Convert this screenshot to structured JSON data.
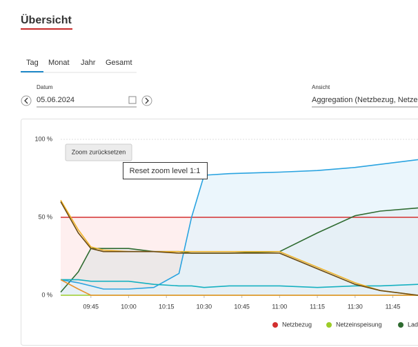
{
  "header": {
    "title": "Übersicht"
  },
  "tabs": [
    "Tag",
    "Monat",
    "Jahr",
    "Gesamt"
  ],
  "date": {
    "label": "Datum",
    "value": "05.06.2024"
  },
  "view": {
    "label": "Ansicht",
    "value": "Aggregation (Netzbezug, Netzei"
  },
  "zoom_button": "Zoom zurücksetzen",
  "tooltip": "Reset zoom level 1:1",
  "chart_data": {
    "type": "line",
    "x": [
      573,
      580,
      585,
      590,
      600,
      610,
      620,
      625,
      630,
      640,
      660,
      675,
      690,
      700,
      715
    ],
    "xlim": [
      573,
      715
    ],
    "xticks": [
      {
        "value": 585,
        "label": "09:45"
      },
      {
        "value": 600,
        "label": "10:00"
      },
      {
        "value": 615,
        "label": "10:15"
      },
      {
        "value": 630,
        "label": "10:30"
      },
      {
        "value": 645,
        "label": "10:45"
      },
      {
        "value": 660,
        "label": "11:00"
      },
      {
        "value": 675,
        "label": "11:15"
      },
      {
        "value": 690,
        "label": "11:30"
      },
      {
        "value": 705,
        "label": "11:45"
      }
    ],
    "ylim": [
      0,
      100
    ],
    "yticks": [
      {
        "value": 0,
        "label": "0 %"
      },
      {
        "value": 50,
        "label": "50 %"
      },
      {
        "value": 100,
        "label": "100 %"
      }
    ],
    "grid": true,
    "series": [
      {
        "name": "Netzbezug",
        "color": "#d32f2f",
        "fill": "#fdeaea",
        "values": [
          50,
          50,
          50,
          50,
          50,
          50,
          50,
          50,
          50,
          50,
          50,
          50,
          50,
          50,
          50
        ]
      },
      {
        "name": "Netzeinspeisung",
        "color": "#9ccc28",
        "values": [
          0,
          0,
          0,
          0,
          0,
          0,
          0,
          0,
          0,
          0,
          0,
          0,
          0,
          0,
          0
        ]
      },
      {
        "name": "Lad",
        "color": "#2e6b30",
        "fill": "#e6e6e6",
        "values": [
          2,
          15,
          30,
          30,
          30,
          28,
          28,
          27,
          27,
          27,
          28,
          40,
          51,
          54,
          56
        ]
      },
      {
        "color": "#29a3e0",
        "fill": "#e4f3fb",
        "values": [
          10,
          8,
          6,
          4,
          4,
          5,
          14,
          50,
          77,
          78,
          79,
          80,
          82,
          84,
          87
        ]
      },
      {
        "color": "#14b0c0",
        "values": [
          10,
          10,
          9,
          9,
          9,
          7,
          6,
          6,
          5,
          6,
          6,
          5,
          6,
          6,
          7
        ]
      },
      {
        "color": "#e8902a",
        "values": [
          10,
          4,
          0,
          0,
          0,
          0,
          0,
          0,
          0,
          0,
          0,
          0,
          0,
          0,
          0
        ]
      },
      {
        "color": "#f0b429",
        "values": [
          61,
          42,
          31,
          29,
          28,
          28,
          28,
          28,
          28,
          28,
          28,
          18,
          8,
          3,
          0
        ]
      },
      {
        "color": "#6b4a10",
        "values": [
          60,
          40,
          30,
          28,
          28,
          28,
          27,
          27,
          27,
          27,
          27,
          17,
          7,
          3,
          0
        ]
      }
    ]
  }
}
